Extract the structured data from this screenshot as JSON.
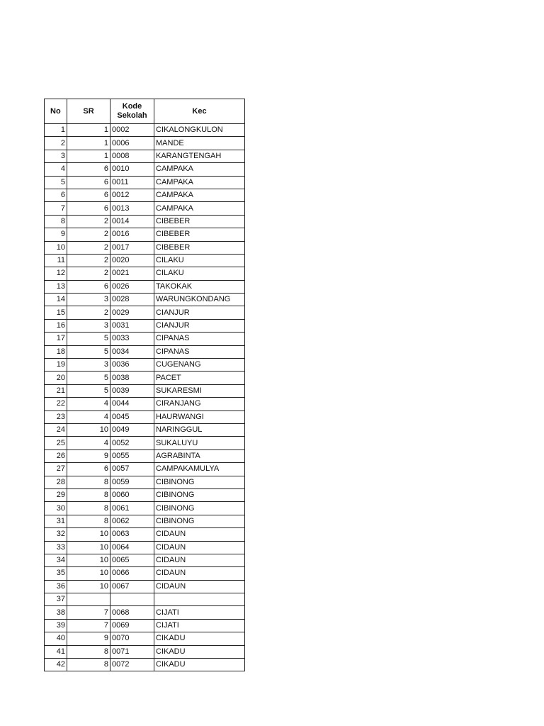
{
  "headers": {
    "no": "No",
    "sr": "SR",
    "kode_line1": "Kode",
    "kode_line2": "Sekolah",
    "kec": "Kec"
  },
  "rows": [
    {
      "no": "1",
      "sr": "1",
      "kode": "0002",
      "kec": "CIKALONGKULON"
    },
    {
      "no": "2",
      "sr": "1",
      "kode": "0006",
      "kec": "MANDE"
    },
    {
      "no": "3",
      "sr": "1",
      "kode": "0008",
      "kec": "KARANGTENGAH"
    },
    {
      "no": "4",
      "sr": "6",
      "kode": "0010",
      "kec": "CAMPAKA"
    },
    {
      "no": "5",
      "sr": "6",
      "kode": "0011",
      "kec": "CAMPAKA"
    },
    {
      "no": "6",
      "sr": "6",
      "kode": "0012",
      "kec": "CAMPAKA"
    },
    {
      "no": "7",
      "sr": "6",
      "kode": "0013",
      "kec": "CAMPAKA"
    },
    {
      "no": "8",
      "sr": "2",
      "kode": "0014",
      "kec": "CIBEBER"
    },
    {
      "no": "9",
      "sr": "2",
      "kode": "0016",
      "kec": "CIBEBER"
    },
    {
      "no": "10",
      "sr": "2",
      "kode": "0017",
      "kec": "CIBEBER"
    },
    {
      "no": "11",
      "sr": "2",
      "kode": "0020",
      "kec": "CILAKU"
    },
    {
      "no": "12",
      "sr": "2",
      "kode": "0021",
      "kec": "CILAKU"
    },
    {
      "no": "13",
      "sr": "6",
      "kode": "0026",
      "kec": "TAKOKAK"
    },
    {
      "no": "14",
      "sr": "3",
      "kode": "0028",
      "kec": "WARUNGKONDANG"
    },
    {
      "no": "15",
      "sr": "2",
      "kode": "0029",
      "kec": "CIANJUR"
    },
    {
      "no": "16",
      "sr": "3",
      "kode": "0031",
      "kec": "CIANJUR"
    },
    {
      "no": "17",
      "sr": "5",
      "kode": "0033",
      "kec": "CIPANAS"
    },
    {
      "no": "18",
      "sr": "5",
      "kode": "0034",
      "kec": "CIPANAS"
    },
    {
      "no": "19",
      "sr": "3",
      "kode": "0036",
      "kec": "CUGENANG"
    },
    {
      "no": "20",
      "sr": "5",
      "kode": "0038",
      "kec": "PACET"
    },
    {
      "no": "21",
      "sr": "5",
      "kode": "0039",
      "kec": "SUKARESMI"
    },
    {
      "no": "22",
      "sr": "4",
      "kode": "0044",
      "kec": "CIRANJANG"
    },
    {
      "no": "23",
      "sr": "4",
      "kode": "0045",
      "kec": "HAURWANGI"
    },
    {
      "no": "24",
      "sr": "10",
      "kode": "0049",
      "kec": "NARINGGUL"
    },
    {
      "no": "25",
      "sr": "4",
      "kode": "0052",
      "kec": "SUKALUYU"
    },
    {
      "no": "26",
      "sr": "9",
      "kode": "0055",
      "kec": "AGRABINTA"
    },
    {
      "no": "27",
      "sr": "6",
      "kode": "0057",
      "kec": "CAMPAKAMULYA"
    },
    {
      "no": "28",
      "sr": "8",
      "kode": "0059",
      "kec": "CIBINONG"
    },
    {
      "no": "29",
      "sr": "8",
      "kode": "0060",
      "kec": "CIBINONG"
    },
    {
      "no": "30",
      "sr": "8",
      "kode": "0061",
      "kec": "CIBINONG"
    },
    {
      "no": "31",
      "sr": "8",
      "kode": "0062",
      "kec": "CIBINONG"
    },
    {
      "no": "32",
      "sr": "10",
      "kode": "0063",
      "kec": "CIDAUN"
    },
    {
      "no": "33",
      "sr": "10",
      "kode": "0064",
      "kec": "CIDAUN"
    },
    {
      "no": "34",
      "sr": "10",
      "kode": "0065",
      "kec": "CIDAUN"
    },
    {
      "no": "35",
      "sr": "10",
      "kode": "0066",
      "kec": "CIDAUN"
    },
    {
      "no": "36",
      "sr": "10",
      "kode": "0067",
      "kec": "CIDAUN"
    },
    {
      "no": "37",
      "sr": "",
      "kode": "",
      "kec": ""
    },
    {
      "no": "38",
      "sr": "7",
      "kode": "0068",
      "kec": "CIJATI"
    },
    {
      "no": "39",
      "sr": "7",
      "kode": "0069",
      "kec": "CIJATI"
    },
    {
      "no": "40",
      "sr": "9",
      "kode": "0070",
      "kec": "CIKADU"
    },
    {
      "no": "41",
      "sr": "8",
      "kode": "0071",
      "kec": "CIKADU"
    },
    {
      "no": "42",
      "sr": "8",
      "kode": "0072",
      "kec": "CIKADU"
    }
  ]
}
